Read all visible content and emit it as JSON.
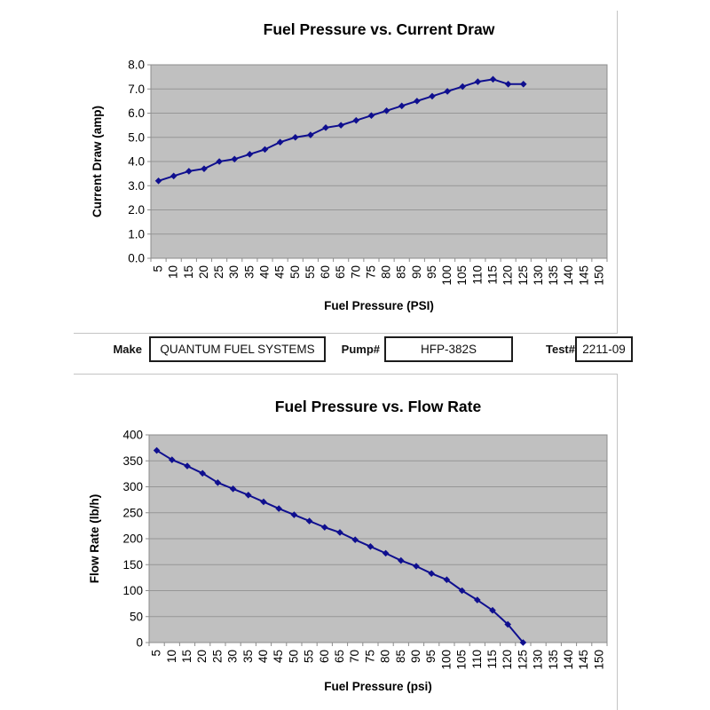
{
  "form": {
    "fields": [
      {
        "label": "Make",
        "value": "QUANTUM FUEL SYSTEMS"
      },
      {
        "label": "Pump#",
        "value": "HFP-382S"
      },
      {
        "label": "Test#",
        "value": "2211-09"
      }
    ]
  },
  "colors": {
    "plot_background": "#c0c0c0",
    "gridline": "#969696",
    "plot_border": "#8c8c8c",
    "series_line": "#0f0f8f",
    "text": "#000000"
  },
  "chart_data": [
    {
      "type": "line",
      "title": "Fuel Pressure vs. Current Draw",
      "xlabel": "Fuel Pressure (PSI)",
      "ylabel": "Current Draw (amp)",
      "categories": [
        5,
        10,
        15,
        20,
        25,
        30,
        35,
        40,
        45,
        50,
        55,
        60,
        65,
        70,
        75,
        80,
        85,
        90,
        95,
        100,
        105,
        110,
        115,
        120,
        125,
        130,
        135,
        140,
        145,
        150
      ],
      "values": [
        3.2,
        3.4,
        3.6,
        3.7,
        4.0,
        4.1,
        4.3,
        4.5,
        4.8,
        5.0,
        5.1,
        5.4,
        5.5,
        5.7,
        5.9,
        6.1,
        6.3,
        6.5,
        6.7,
        6.9,
        7.1,
        7.3,
        7.4,
        7.2,
        7.2
      ],
      "ylim": [
        0,
        8
      ],
      "ytick_step": 1,
      "y_decimals": 1,
      "grid": true,
      "legend": "none",
      "marker": "diamond"
    },
    {
      "type": "line",
      "title": "Fuel Pressure vs. Flow Rate",
      "xlabel": "Fuel Pressure (psi)",
      "ylabel": "Flow Rate (lb/h)",
      "categories": [
        5,
        10,
        15,
        20,
        25,
        30,
        35,
        40,
        45,
        50,
        55,
        60,
        65,
        70,
        75,
        80,
        85,
        90,
        95,
        100,
        105,
        110,
        115,
        120,
        125,
        130,
        135,
        140,
        145,
        150
      ],
      "values": [
        370,
        352,
        340,
        326,
        308,
        296,
        284,
        271,
        258,
        246,
        234,
        222,
        212,
        198,
        185,
        172,
        158,
        147,
        133,
        121,
        100,
        82,
        62,
        35,
        0
      ],
      "ylim": [
        0,
        400
      ],
      "ytick_step": 50,
      "y_decimals": 0,
      "grid": true,
      "legend": "none",
      "marker": "diamond"
    }
  ]
}
